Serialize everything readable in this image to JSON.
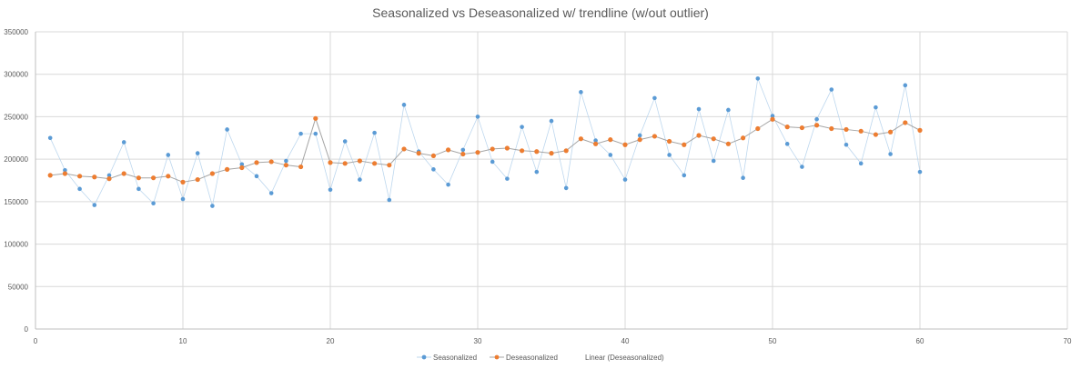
{
  "chart_data": {
    "type": "scatter",
    "title": "Seasonalized vs Deseasonalized w/ trendline (w/out outlier)",
    "xlabel": "",
    "ylabel": "",
    "xlim": [
      0,
      70
    ],
    "ylim": [
      0,
      350000
    ],
    "x_ticks": [
      0,
      10,
      20,
      30,
      40,
      50,
      60,
      70
    ],
    "y_ticks": [
      0,
      50000,
      100000,
      150000,
      200000,
      250000,
      300000,
      350000
    ],
    "grid": true,
    "legend_position": "bottom",
    "x": [
      1,
      2,
      3,
      4,
      5,
      6,
      7,
      8,
      9,
      10,
      11,
      12,
      13,
      14,
      15,
      16,
      17,
      18,
      19,
      20,
      21,
      22,
      23,
      24,
      25,
      26,
      27,
      28,
      29,
      30,
      31,
      32,
      33,
      34,
      35,
      36,
      37,
      38,
      39,
      40,
      41,
      42,
      43,
      44,
      45,
      46,
      47,
      48,
      49,
      50,
      51,
      52,
      53,
      54,
      55,
      56,
      57,
      58,
      59,
      60
    ],
    "series": [
      {
        "name": "Seasonalized",
        "color": "#5b9bd5",
        "line_color": "#bdd7ee",
        "values": [
          225000,
          187000,
          165000,
          146000,
          181000,
          220000,
          165000,
          148000,
          205000,
          153000,
          207000,
          145000,
          235000,
          194000,
          180000,
          160000,
          198000,
          230000,
          230000,
          164000,
          221000,
          176000,
          231000,
          152000,
          264000,
          209000,
          188000,
          170000,
          211000,
          250000,
          197000,
          177000,
          238000,
          185000,
          245000,
          166000,
          279000,
          222000,
          205000,
          176000,
          228000,
          272000,
          205000,
          181000,
          259000,
          198000,
          258000,
          178000,
          295000,
          251000,
          218000,
          191000,
          247000,
          282000,
          217000,
          195000,
          261000,
          206000,
          287000,
          185000
        ]
      },
      {
        "name": "Deseasonalized",
        "color": "#ed7d31",
        "line_color": "#a5a5a5",
        "values": [
          181000,
          183000,
          180000,
          179000,
          177000,
          183000,
          178000,
          178000,
          180000,
          173000,
          176000,
          183000,
          188000,
          190000,
          196000,
          197000,
          193000,
          191000,
          248000,
          196000,
          195000,
          198000,
          195000,
          193000,
          212000,
          207000,
          204000,
          211000,
          206000,
          208000,
          212000,
          213000,
          210000,
          209000,
          207000,
          210000,
          224000,
          218000,
          223000,
          217000,
          223000,
          227000,
          221000,
          217000,
          228000,
          224000,
          218000,
          225000,
          236000,
          247000,
          238000,
          237000,
          240000,
          236000,
          235000,
          233000,
          229000,
          232000,
          243000,
          234000
        ]
      }
    ],
    "legend": [
      "Seasonalized",
      "Deseasonalized",
      "Linear (Deseasonalized)"
    ]
  }
}
